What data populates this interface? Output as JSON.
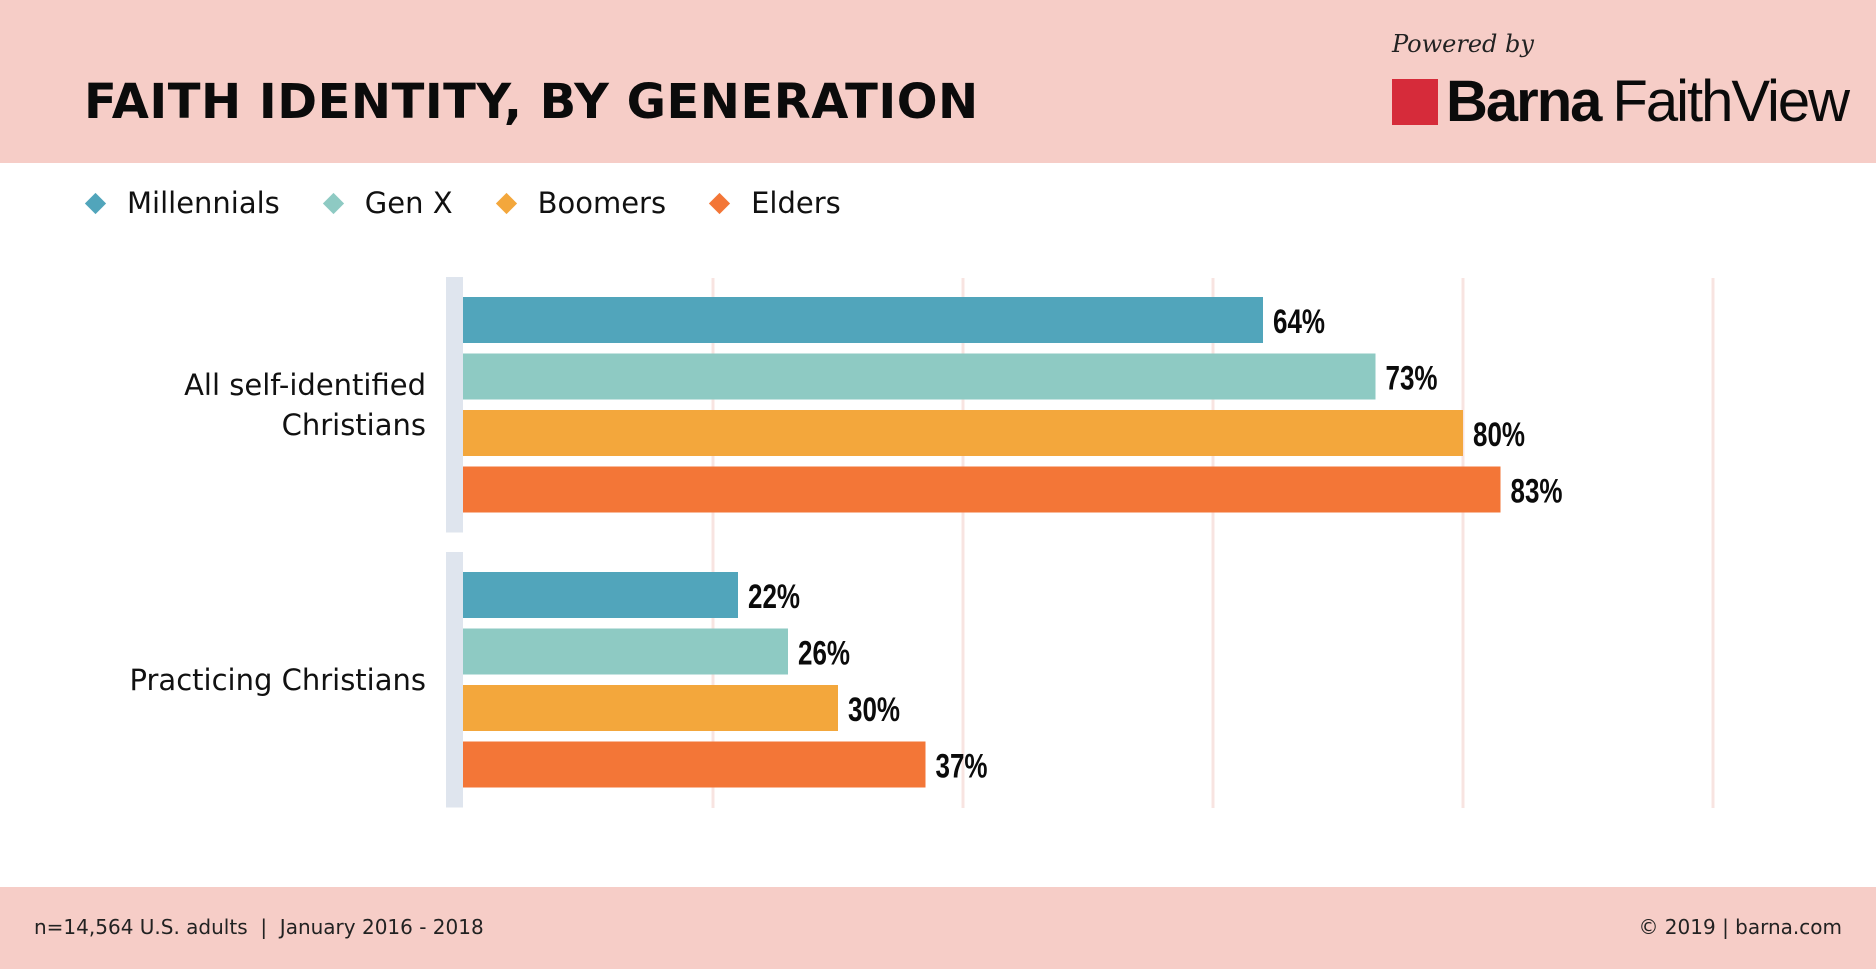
{
  "header": {
    "title": "FAITH IDENTITY, BY GENERATION",
    "powered_by": "Powered by",
    "logo_bold": "Barna",
    "logo_light": "FaithView",
    "logo_color": "#d62b3a"
  },
  "footer": {
    "left": "n=14,564 U.S. adults  |  January 2016 - 2018",
    "right": "© 2019 | barna.com"
  },
  "chart_data": {
    "type": "bar",
    "orientation": "horizontal",
    "title": "FAITH IDENTITY, BY GENERATION",
    "xlabel": "",
    "ylabel": "",
    "xlim": [
      0,
      100
    ],
    "grid": true,
    "gridlines": [
      20,
      40,
      60,
      80,
      100
    ],
    "legend_position": "top-left",
    "categories": [
      [
        "All self-identified",
        "Christians"
      ],
      [
        "Practicing Christians"
      ]
    ],
    "series": [
      {
        "name": "Millennials",
        "color": "#51a5bb",
        "values": [
          64,
          22
        ]
      },
      {
        "name": "Gen X",
        "color": "#8ecac3",
        "values": [
          73,
          26
        ]
      },
      {
        "name": "Boomers",
        "color": "#f3a73c",
        "values": [
          80,
          30
        ]
      },
      {
        "name": "Elders",
        "color": "#f37637",
        "values": [
          83,
          37
        ]
      }
    ],
    "value_suffix": "%"
  }
}
